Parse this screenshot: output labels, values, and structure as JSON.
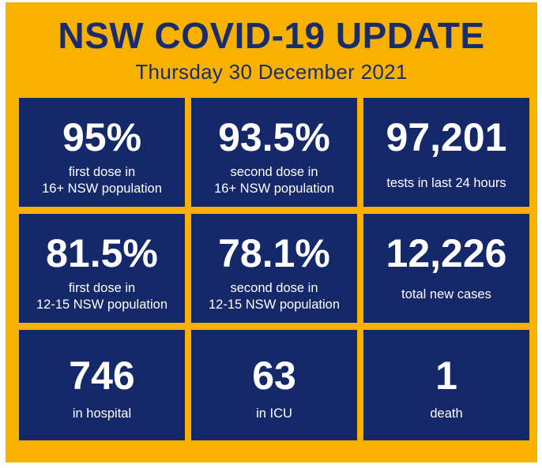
{
  "header": {
    "title": "NSW COVID-19 UPDATE",
    "date": "Thursday 30 December 2021"
  },
  "colors": {
    "background": "#f9b100",
    "tile": "#14286a",
    "title_text": "#1a2d6b",
    "tile_text": "#ffffff"
  },
  "stats": [
    {
      "value": "95%",
      "line1": "first dose in",
      "line2": "16+ NSW population"
    },
    {
      "value": "93.5%",
      "line1": "second dose in",
      "line2": "16+ NSW population"
    },
    {
      "value": "97,201",
      "line1": "tests in last 24 hours"
    },
    {
      "value": "81.5%",
      "line1": "first dose in",
      "line2": "12-15 NSW population"
    },
    {
      "value": "78.1%",
      "line1": "second dose in",
      "line2": "12-15 NSW population"
    },
    {
      "value": "12,226",
      "line1": "total new cases"
    },
    {
      "value": "746",
      "line1": "in hospital"
    },
    {
      "value": "63",
      "line1": "in ICU"
    },
    {
      "value": "1",
      "line1": "death"
    }
  ]
}
